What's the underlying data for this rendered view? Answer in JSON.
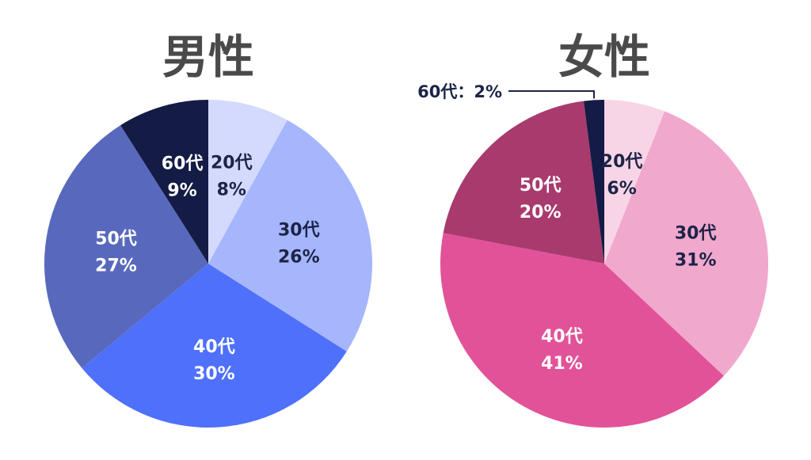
{
  "chart_data": [
    {
      "type": "pie",
      "title": "男性",
      "slices": [
        {
          "category": "20代",
          "value": 8,
          "pct_text": "8%",
          "color": "#d4dafe",
          "text_color": "#1c2447"
        },
        {
          "category": "30代",
          "value": 26,
          "pct_text": "26%",
          "color": "#a6b6fc",
          "text_color": "#1c2447"
        },
        {
          "category": "40代",
          "value": 30,
          "pct_text": "30%",
          "color": "#4f70fa",
          "text_color": "#ffffff"
        },
        {
          "category": "50代",
          "value": 27,
          "pct_text": "27%",
          "color": "#5869bd",
          "text_color": "#ffffff"
        },
        {
          "category": "60代",
          "value": 9,
          "pct_text": "9%",
          "color": "#141b45",
          "text_color": "#ffffff"
        }
      ]
    },
    {
      "type": "pie",
      "title": "女性",
      "slices": [
        {
          "category": "20代",
          "value": 6,
          "pct_text": "6%",
          "color": "#f8d5e6",
          "text_color": "#1c2447"
        },
        {
          "category": "30代",
          "value": 31,
          "pct_text": "31%",
          "color": "#f1a8cd",
          "text_color": "#1c2447"
        },
        {
          "category": "40代",
          "value": 41,
          "pct_text": "41%",
          "color": "#e25299",
          "text_color": "#ffffff"
        },
        {
          "category": "50代",
          "value": 20,
          "pct_text": "20%",
          "color": "#a83a6e",
          "text_color": "#ffffff"
        },
        {
          "category": "60代",
          "value": 2,
          "pct_text": "2%",
          "color": "#141b45",
          "text_color": "#ffffff",
          "callout_text": "60代：2%"
        }
      ]
    }
  ]
}
